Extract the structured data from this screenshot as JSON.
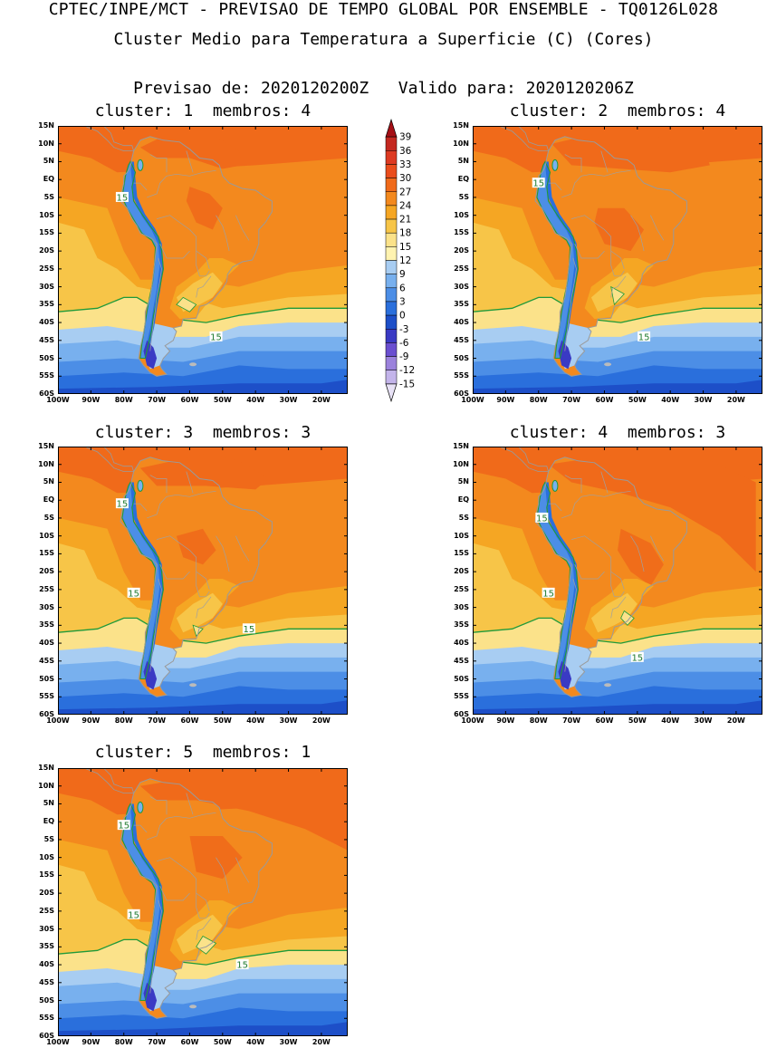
{
  "header": {
    "title_line1": "CPTEC/INPE/MCT - PREVISAO DE TEMPO GLOBAL POR ENSEMBLE - TQ0126L028",
    "title_line2": "Cluster Medio para Temperatura a Superficie (C) (Cores)",
    "title_line3": "Previsao de: 2020120200Z   Valido para: 2020120206Z"
  },
  "map": {
    "lat_labels": [
      "15N",
      "10N",
      "5N",
      "EQ",
      "5S",
      "10S",
      "15S",
      "20S",
      "25S",
      "30S",
      "35S",
      "40S",
      "45S",
      "50S",
      "55S",
      "60S"
    ],
    "lon_labels": [
      "100W",
      "90W",
      "80W",
      "70W",
      "60W",
      "50W",
      "40W",
      "30W",
      "20W"
    ],
    "lat_range": [
      -60,
      15
    ],
    "lon_range": [
      -100,
      -12
    ],
    "contour_label": "15"
  },
  "panels": [
    {
      "title": "cluster: 1  membros: 4"
    },
    {
      "title": "cluster: 2  membros: 4"
    },
    {
      "title": "cluster: 3  membros: 3"
    },
    {
      "title": "cluster: 4  membros: 3"
    },
    {
      "title": "cluster: 5  membros: 1"
    }
  ],
  "colorbar": {
    "levels": [
      "39",
      "36",
      "33",
      "30",
      "27",
      "24",
      "21",
      "18",
      "15",
      "12",
      "9",
      "6",
      "3",
      "0",
      "-3",
      "-6",
      "-9",
      "-12",
      "-15"
    ],
    "colors": [
      "#a50f15",
      "#c42820",
      "#dd3a22",
      "#ea4d1c",
      "#f06a1a",
      "#f3891e",
      "#f5a623",
      "#f7c548",
      "#fbe28a",
      "#fff3b0",
      "#a8cdf2",
      "#78b0ee",
      "#4c8ee6",
      "#2a6fdc",
      "#1d4fc8",
      "#3a3ac4",
      "#6a4fd0",
      "#9b82dc",
      "#c3b4ea",
      "#e8e2f6"
    ],
    "colors_order": "top-to-bottom"
  }
}
